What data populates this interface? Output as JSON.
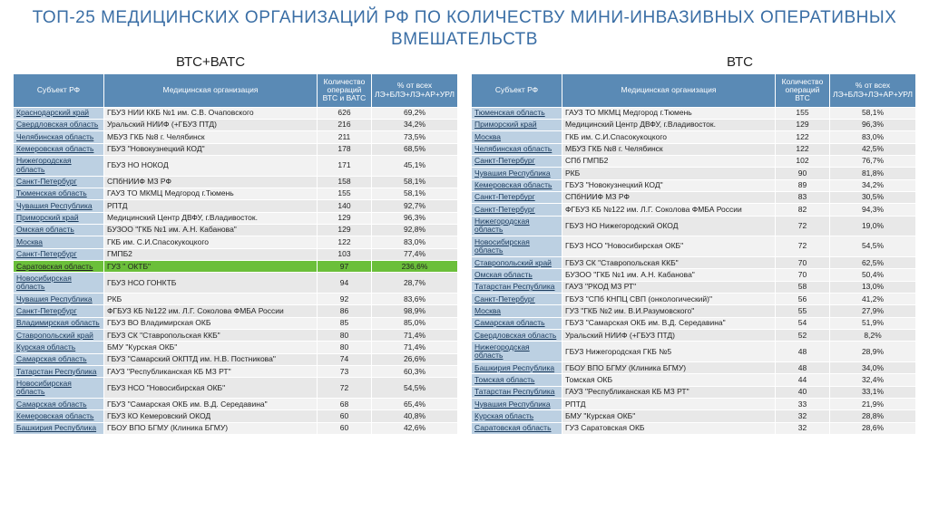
{
  "title": "ТОП-25 МЕДИЦИНСКИХ ОРГАНИЗАЦИЙ РФ ПО КОЛИЧЕСТВУ МИНИ-ИНВАЗИВНЫХ ОПЕРАТИВНЫХ ВМЕШАТЕЛЬСТВ",
  "left": {
    "subtitle": "ВТС+ВАТС",
    "headers": {
      "subject": "Субъект РФ",
      "org": "Медицинская организация",
      "count": "Количество операций ВТС и ВАТС",
      "percent": "% от всех ЛЭ+БЛЭ+ЛЭ+АР+УРЛ"
    },
    "rows": [
      {
        "subj": "Краснодарский край",
        "org": "ГБУЗ НИИ ККБ №1 им. С.В. Очаповского",
        "n": "626",
        "p": "69,2%"
      },
      {
        "subj": "Свердловская область",
        "org": "Уральский НИИФ (+ГБУЗ ПТД)",
        "n": "216",
        "p": "34,2%"
      },
      {
        "subj": "Челябинская область",
        "org": "МБУЗ ГКБ №8 г. Челябинск",
        "n": "211",
        "p": "73,5%"
      },
      {
        "subj": "Кемеровская область",
        "org": "ГБУЗ \"Новокузнецкий КОД\"",
        "n": "178",
        "p": "68,5%"
      },
      {
        "subj": "Нижегородская область",
        "org": "ГБУЗ НО НОКОД",
        "n": "171",
        "p": "45,1%"
      },
      {
        "subj": "Санкт-Петербург",
        "org": "СПбНИИФ МЗ РФ",
        "n": "158",
        "p": "58,1%"
      },
      {
        "subj": "Тюменская область",
        "org": "ГАУЗ ТО МКМЦ Медгород г.Тюмень",
        "n": "155",
        "p": "58,1%"
      },
      {
        "subj": "Чувашия Республика",
        "org": "РПТД",
        "n": "140",
        "p": "92,7%"
      },
      {
        "subj": "Приморский край",
        "org": "Медицинский Центр ДВФУ, г.Владивосток.",
        "n": "129",
        "p": "96,3%"
      },
      {
        "subj": "Омская область",
        "org": "БУЗОО \"ГКБ №1 им. А.Н. Кабанова\"",
        "n": "129",
        "p": "92,8%"
      },
      {
        "subj": "Москва",
        "org": "ГКБ им. С.И.Спасокукоцкого",
        "n": "122",
        "p": "83,0%"
      },
      {
        "subj": "Санкт-Петербург",
        "org": "ГМПБ2",
        "n": "103",
        "p": "77,4%"
      },
      {
        "subj": "Саратовская область",
        "org": "ГУЗ \" ОКТБ\"",
        "n": "97",
        "p": "236,6%",
        "hl": true
      },
      {
        "subj": "Новосибирская область",
        "org": "ГБУЗ НСО ГОНКТБ",
        "n": "94",
        "p": "28,7%"
      },
      {
        "subj": "Чувашия Республика",
        "org": "РКБ",
        "n": "92",
        "p": "83,6%"
      },
      {
        "subj": "Санкт-Петербург",
        "org": "ФГБУЗ КБ №122 им. Л.Г. Соколова ФМБА России",
        "n": "86",
        "p": "98,9%"
      },
      {
        "subj": "Владимирская область",
        "org": "ГБУЗ ВО Владимирская ОКБ",
        "n": "85",
        "p": "85,0%"
      },
      {
        "subj": "Ставропольский край",
        "org": "ГБУЗ СК \"Ставропольская ККБ\"",
        "n": "80",
        "p": "71,4%"
      },
      {
        "subj": "Курская область",
        "org": "БМУ \"Курская ОКБ\"",
        "n": "80",
        "p": "71,4%"
      },
      {
        "subj": "Самарская область",
        "org": "ГБУЗ \"Самарский ОКПТД им. Н.В. Постникова\"",
        "n": "74",
        "p": "26,6%"
      },
      {
        "subj": "Татарстан Республика",
        "org": "ГАУЗ \"Республиканская КБ МЗ РТ\"",
        "n": "73",
        "p": "60,3%"
      },
      {
        "subj": "Новосибирская область",
        "org": "ГБУЗ НСО \"Новосибирская ОКБ\"",
        "n": "72",
        "p": "54,5%"
      },
      {
        "subj": "Самарская область",
        "org": "ГБУЗ \"Самарская ОКБ им. В.Д. Середавина\"",
        "n": "68",
        "p": "65,4%"
      },
      {
        "subj": "Кемеровская область",
        "org": "ГБУЗ КО Кемеровский ОКОД",
        "n": "60",
        "p": "40,8%"
      },
      {
        "subj": "Башкирия Республика",
        "org": "ГБОУ ВПО БГМУ (Клиника БГМУ)",
        "n": "60",
        "p": "42,6%"
      }
    ]
  },
  "right": {
    "subtitle": "ВТС",
    "headers": {
      "subject": "Субъект РФ",
      "org": "Медицинская организация",
      "count": "Количество операций ВТС",
      "percent": "% от всех ЛЭ+БЛЭ+ЛЭ+АР+УРЛ"
    },
    "rows": [
      {
        "subj": "Тюменская область",
        "org": "ГАУЗ ТО МКМЦ Медгород г.Тюмень",
        "n": "155",
        "p": "58,1%"
      },
      {
        "subj": "Приморский край",
        "org": "Медицинский Центр ДВФУ, г.Владивосток.",
        "n": "129",
        "p": "96,3%"
      },
      {
        "subj": "Москва",
        "org": "ГКБ им. С.И.Спасокукоцкого",
        "n": "122",
        "p": "83,0%"
      },
      {
        "subj": "Челябинская область",
        "org": "МБУЗ ГКБ №8 г. Челябинск",
        "n": "122",
        "p": "42,5%"
      },
      {
        "subj": "Санкт-Петербург",
        "org": "СПб ГМПБ2",
        "n": "102",
        "p": "76,7%"
      },
      {
        "subj": "Чувашия Республика",
        "org": "РКБ",
        "n": "90",
        "p": "81,8%"
      },
      {
        "subj": "Кемеровская область",
        "org": "ГБУЗ \"Новокузнецкий КОД\"",
        "n": "89",
        "p": "34,2%"
      },
      {
        "subj": "Санкт-Петербург",
        "org": "СПбНИИФ МЗ РФ",
        "n": "83",
        "p": "30,5%"
      },
      {
        "subj": "Санкт-Петербург",
        "org": "ФГБУЗ КБ №122 им. Л.Г. Соколова ФМБА России",
        "n": "82",
        "p": "94,3%"
      },
      {
        "subj": "Нижегородская область",
        "org": "ГБУЗ НО Нижегородский ОКОД",
        "n": "72",
        "p": "19,0%"
      },
      {
        "subj": "Новосибирская область",
        "org": "ГБУЗ НСО \"Новосибирская ОКБ\"",
        "n": "72",
        "p": "54,5%"
      },
      {
        "subj": "Ставропольский край",
        "org": "ГБУЗ СК \"Ставропольская ККБ\"",
        "n": "70",
        "p": "62,5%"
      },
      {
        "subj": "Омская область",
        "org": "БУЗОО \"ГКБ №1 им. А.Н. Кабанова\"",
        "n": "70",
        "p": "50,4%"
      },
      {
        "subj": "Татарстан Республика",
        "org": "ГАУЗ \"РКОД МЗ РТ\"",
        "n": "58",
        "p": "13,0%"
      },
      {
        "subj": "Санкт-Петербург",
        "org": "ГБУЗ \"СПб КНПЦ СВП (онкологический)\"",
        "n": "56",
        "p": "41,2%"
      },
      {
        "subj": "Москва",
        "org": "ГУЗ \"ГКБ №2 им. В.И.Разумовского\"",
        "n": "55",
        "p": "27,9%"
      },
      {
        "subj": "Самарская область",
        "org": "ГБУЗ \"Самарская ОКБ им. В.Д. Середавина\"",
        "n": "54",
        "p": "51,9%"
      },
      {
        "subj": "Свердловская область",
        "org": "Уральский НИИФ (+ГБУЗ ПТД)",
        "n": "52",
        "p": "8,2%"
      },
      {
        "subj": "Нижегородская область",
        "org": "ГБУЗ Нижегородская ГКБ №5",
        "n": "48",
        "p": "28,9%"
      },
      {
        "subj": "Башкирия Республика",
        "org": "ГБОУ ВПО БГМУ (Клиника БГМУ)",
        "n": "48",
        "p": "34,0%"
      },
      {
        "subj": "Томская область",
        "org": "Томская ОКБ",
        "n": "44",
        "p": "32,4%"
      },
      {
        "subj": "Татарстан Республика",
        "org": "ГАУЗ \"Республиканская КБ МЗ РТ\"",
        "n": "40",
        "p": "33,1%"
      },
      {
        "subj": "Чувашия Республика",
        "org": "РПТД",
        "n": "33",
        "p": "21,9%"
      },
      {
        "subj": "Курская область",
        "org": "БМУ \"Курская ОКБ\"",
        "n": "32",
        "p": "28,8%"
      },
      {
        "subj": "Саратовская область",
        "org": "ГУЗ Саратовская ОКБ",
        "n": "32",
        "p": "28,6%"
      }
    ]
  }
}
